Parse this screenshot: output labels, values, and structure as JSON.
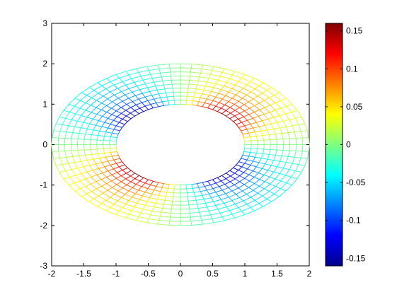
{
  "chart_data": [
    {
      "type": "surface-mesh",
      "view": "2D top view (azimuth 0, elevation 90)",
      "description_source": "annulus mesh colored by value",
      "x": {
        "lim": [
          -2,
          2
        ],
        "ticks": [
          -2,
          -1.5,
          -1,
          -0.5,
          0,
          0.5,
          1,
          1.5,
          2
        ],
        "tick_labels": [
          "-2",
          "-1.5",
          "-1",
          "-0.5",
          "0",
          "0.5",
          "1",
          "1.5",
          "2"
        ]
      },
      "y": {
        "lim": [
          -3,
          3
        ],
        "ticks": [
          -3,
          -2,
          -1,
          0,
          1,
          2,
          3
        ],
        "tick_labels": [
          "-3",
          "-2",
          "-1",
          "0",
          "1",
          "2",
          "3"
        ]
      },
      "domain": {
        "shape": "annulus",
        "inner_radius": 1,
        "outer_radius": 2,
        "radial_lines": 72,
        "rings": 11
      },
      "field": {
        "formula": "0.16 * r^-2 * sin(2*theta)",
        "max": 0.16,
        "min": -0.16
      },
      "grid": false
    },
    {
      "type": "colorbar",
      "colormap": "jet",
      "clim": [
        -0.16,
        0.16
      ],
      "ticks": [
        -0.15,
        -0.1,
        -0.05,
        0,
        0.05,
        0.1,
        0.15
      ],
      "tick_labels": [
        "-0.15",
        "-0.1",
        "-0.05",
        "0",
        "0.05",
        "0.1",
        "0.15"
      ],
      "placement": "right"
    }
  ]
}
